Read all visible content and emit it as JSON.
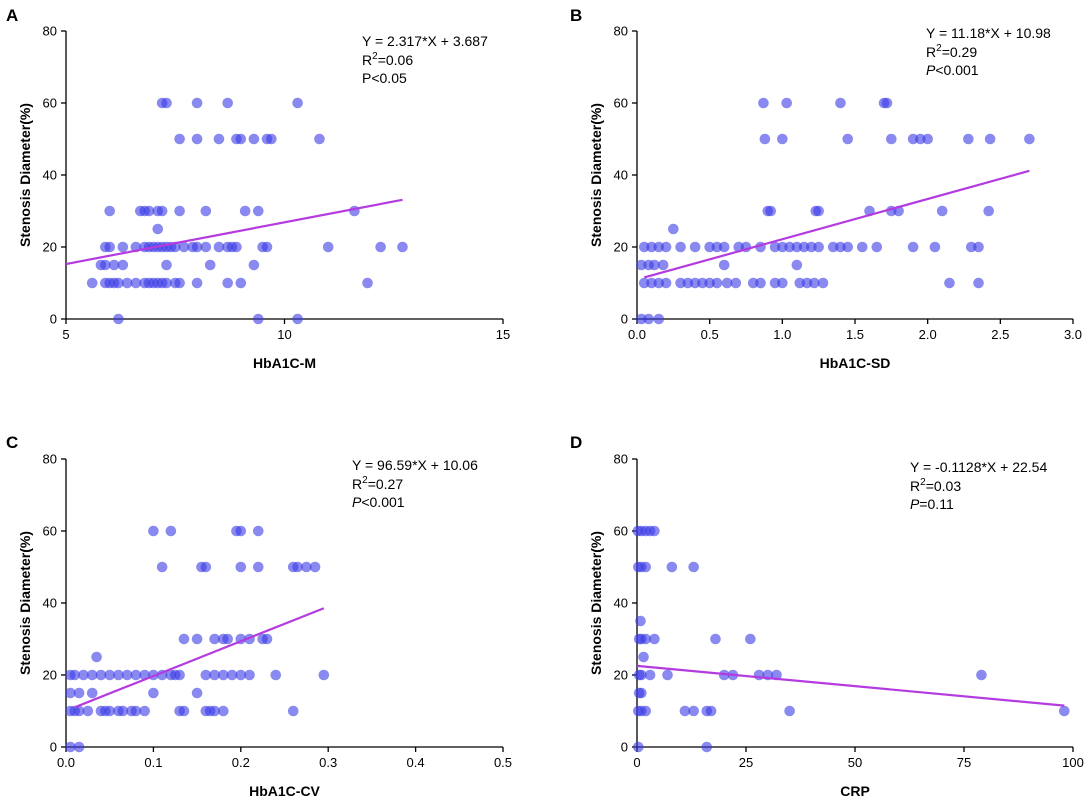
{
  "chart_data": [
    {
      "type": "scatter",
      "panel_label": "A",
      "xlabel": "HbA1C-M",
      "ylabel": "Stenosis Diameter(%)",
      "xlim": [
        5,
        15
      ],
      "ylim": [
        0,
        80
      ],
      "xticks": [
        "5",
        "10",
        "15"
      ],
      "yticks": [
        "0",
        "20",
        "40",
        "60",
        "80"
      ],
      "equation": "Y = 2.317*X + 3.687",
      "r2_value": "=0.06",
      "p_prefix": "P",
      "p_italic": false,
      "p_value": "<0.05",
      "fit_line": {
        "x": [
          5,
          12.7
        ],
        "y": [
          15.27,
          33.11
        ]
      },
      "points": {
        "x": [
          7.2,
          7.3,
          8.0,
          8.7,
          10.3,
          7.6,
          8.0,
          8.5,
          8.9,
          9.0,
          9.3,
          9.6,
          9.7,
          10.8,
          11.6,
          6.7,
          6.8,
          6.9,
          7.1,
          7.6,
          8.2,
          9.1,
          9.4,
          6.0,
          7.2,
          5.9,
          6.0,
          6.3,
          6.6,
          6.8,
          6.9,
          7.0,
          7.1,
          7.2,
          7.3,
          7.4,
          7.5,
          7.7,
          7.9,
          8.0,
          8.2,
          8.5,
          8.7,
          8.8,
          8.9,
          9.5,
          9.6,
          11.0,
          12.2,
          12.7,
          5.8,
          5.9,
          6.1,
          6.3,
          7.3,
          8.3,
          9.3,
          5.6,
          5.9,
          6.0,
          6.1,
          6.2,
          6.4,
          6.6,
          6.8,
          6.9,
          7.0,
          7.1,
          7.2,
          7.3,
          7.5,
          7.6,
          8.0,
          8.7,
          9.0,
          11.9,
          6.2,
          9.4,
          10.3,
          7.1
        ],
        "y": [
          60,
          60,
          60,
          60,
          60,
          50,
          50,
          50,
          50,
          50,
          50,
          50,
          50,
          50,
          30,
          30,
          30,
          30,
          30,
          30,
          30,
          30,
          30,
          30,
          30,
          20,
          20,
          20,
          20,
          20,
          20,
          20,
          20,
          20,
          20,
          20,
          20,
          20,
          20,
          20,
          20,
          20,
          20,
          20,
          20,
          20,
          20,
          20,
          20,
          20,
          15,
          15,
          15,
          15,
          15,
          15,
          15,
          10,
          10,
          10,
          10,
          10,
          10,
          10,
          10,
          10,
          10,
          10,
          10,
          10,
          10,
          10,
          10,
          10,
          10,
          10,
          0,
          0,
          0,
          25
        ]
      }
    },
    {
      "type": "scatter",
      "panel_label": "B",
      "xlabel": "HbA1C-SD",
      "ylabel": "Stenosis Diameter(%)",
      "xlim": [
        0,
        3.0
      ],
      "ylim": [
        0,
        80
      ],
      "xticks": [
        "0.0",
        "0.5",
        "1.0",
        "1.5",
        "2.0",
        "2.5",
        "3.0"
      ],
      "yticks": [
        "0",
        "20",
        "40",
        "60",
        "80"
      ],
      "equation": "Y = 11.18*X + 10.98",
      "r2_value": "=0.29",
      "p_prefix": "P",
      "p_italic": true,
      "p_value": "<0.001",
      "fit_line": {
        "x": [
          0.05,
          2.7
        ],
        "y": [
          11.54,
          41.17
        ]
      },
      "points": {
        "x": [
          0.87,
          1.03,
          1.4,
          1.7,
          1.72,
          0.88,
          1.0,
          1.45,
          1.75,
          1.9,
          1.95,
          2.0,
          2.28,
          2.43,
          2.7,
          0.25,
          0.9,
          0.92,
          1.23,
          1.25,
          1.6,
          1.75,
          1.8,
          2.1,
          2.42,
          0.05,
          0.1,
          0.15,
          0.2,
          0.3,
          0.4,
          0.5,
          0.55,
          0.6,
          0.7,
          0.75,
          0.85,
          0.95,
          1.0,
          1.05,
          1.1,
          1.15,
          1.2,
          1.25,
          1.35,
          1.4,
          1.45,
          1.55,
          1.65,
          1.9,
          2.05,
          2.3,
          2.35,
          0.03,
          0.08,
          0.12,
          0.18,
          0.6,
          1.1,
          0.05,
          0.1,
          0.15,
          0.2,
          0.3,
          0.35,
          0.4,
          0.45,
          0.5,
          0.55,
          0.62,
          0.68,
          0.8,
          0.85,
          0.95,
          1.0,
          1.12,
          1.17,
          1.22,
          1.28,
          2.15,
          2.35,
          0.03,
          0.08,
          0.15
        ],
        "y": [
          60,
          60,
          60,
          60,
          60,
          50,
          50,
          50,
          50,
          50,
          50,
          50,
          50,
          50,
          50,
          25,
          30,
          30,
          30,
          30,
          30,
          30,
          30,
          30,
          30,
          20,
          20,
          20,
          20,
          20,
          20,
          20,
          20,
          20,
          20,
          20,
          20,
          20,
          20,
          20,
          20,
          20,
          20,
          20,
          20,
          20,
          20,
          20,
          20,
          20,
          20,
          20,
          20,
          15,
          15,
          15,
          15,
          15,
          15,
          10,
          10,
          10,
          10,
          10,
          10,
          10,
          10,
          10,
          10,
          10,
          10,
          10,
          10,
          10,
          10,
          10,
          10,
          10,
          10,
          10,
          10,
          0,
          0,
          0
        ]
      }
    },
    {
      "type": "scatter",
      "panel_label": "C",
      "xlabel": "HbA1C-CV",
      "ylabel": "Stenosis Diameter(%)",
      "xlim": [
        0,
        0.5
      ],
      "ylim": [
        0,
        80
      ],
      "xticks": [
        "0.0",
        "0.1",
        "0.2",
        "0.3",
        "0.4",
        "0.5"
      ],
      "yticks": [
        "0",
        "20",
        "40",
        "60",
        "80"
      ],
      "equation": "Y = 96.59*X + 10.06",
      "r2_value": "=0.27",
      "p_prefix": "P",
      "p_italic": true,
      "p_value": "<0.001",
      "fit_line": {
        "x": [
          0.01,
          0.295
        ],
        "y": [
          11.03,
          38.55
        ]
      },
      "points": {
        "x": [
          0.1,
          0.12,
          0.195,
          0.2,
          0.22,
          0.11,
          0.155,
          0.16,
          0.2,
          0.22,
          0.26,
          0.265,
          0.275,
          0.285,
          0.135,
          0.15,
          0.17,
          0.18,
          0.185,
          0.2,
          0.21,
          0.225,
          0.23,
          0.035,
          0.005,
          0.01,
          0.02,
          0.03,
          0.04,
          0.05,
          0.06,
          0.07,
          0.08,
          0.09,
          0.1,
          0.11,
          0.12,
          0.125,
          0.13,
          0.16,
          0.17,
          0.18,
          0.19,
          0.2,
          0.21,
          0.24,
          0.295,
          0.005,
          0.015,
          0.03,
          0.1,
          0.15,
          0.005,
          0.01,
          0.015,
          0.025,
          0.04,
          0.045,
          0.05,
          0.06,
          0.065,
          0.075,
          0.08,
          0.09,
          0.13,
          0.135,
          0.16,
          0.165,
          0.17,
          0.18,
          0.26,
          0.005,
          0.015
        ],
        "y": [
          60,
          60,
          60,
          60,
          60,
          50,
          50,
          50,
          50,
          50,
          50,
          50,
          50,
          50,
          30,
          30,
          30,
          30,
          30,
          30,
          30,
          30,
          30,
          25,
          20,
          20,
          20,
          20,
          20,
          20,
          20,
          20,
          20,
          20,
          20,
          20,
          20,
          20,
          20,
          20,
          20,
          20,
          20,
          20,
          20,
          20,
          20,
          15,
          15,
          15,
          15,
          15,
          10,
          10,
          10,
          10,
          10,
          10,
          10,
          10,
          10,
          10,
          10,
          10,
          10,
          10,
          10,
          10,
          10,
          10,
          10,
          0,
          0
        ]
      }
    },
    {
      "type": "scatter",
      "panel_label": "D",
      "xlabel": "CRP",
      "ylabel": "Stenosis Diameter(%)",
      "xlim": [
        0,
        100
      ],
      "ylim": [
        0,
        80
      ],
      "xticks": [
        "0",
        "25",
        "50",
        "75",
        "100"
      ],
      "yticks": [
        "0",
        "20",
        "40",
        "60",
        "80"
      ],
      "equation": "Y = -0.1128*X + 22.54",
      "r2_value": "=0.03",
      "p_prefix": "P",
      "p_italic": true,
      "p_value": "=0.11",
      "fit_line": {
        "x": [
          0,
          98
        ],
        "y": [
          22.54,
          11.49
        ]
      },
      "points": {
        "x": [
          0.2,
          1,
          2,
          3,
          4,
          0.3,
          1,
          2,
          8,
          13,
          0.5,
          1,
          2,
          4,
          18,
          26,
          0.5,
          1,
          3,
          7,
          20,
          22,
          28,
          30,
          32,
          79,
          0.5,
          1,
          0.3,
          1,
          2,
          11,
          13,
          16,
          17,
          35,
          98,
          0.3,
          16,
          1.5,
          0.8
        ],
        "y": [
          60,
          60,
          60,
          60,
          60,
          50,
          50,
          50,
          50,
          50,
          30,
          30,
          30,
          30,
          30,
          30,
          20,
          20,
          20,
          20,
          20,
          20,
          20,
          20,
          20,
          20,
          15,
          15,
          10,
          10,
          10,
          10,
          10,
          10,
          10,
          10,
          10,
          0,
          0,
          25,
          35
        ]
      }
    }
  ]
}
